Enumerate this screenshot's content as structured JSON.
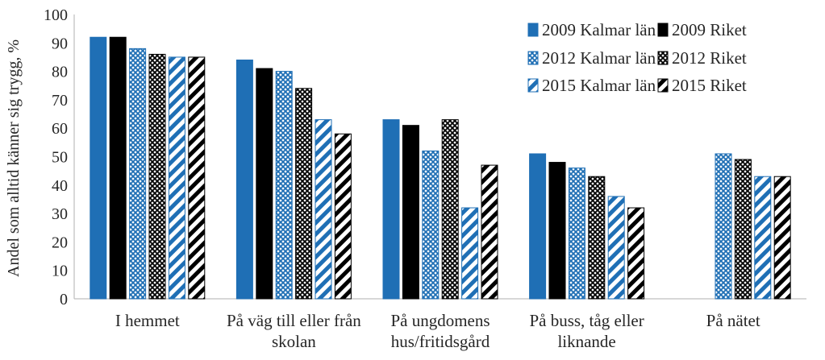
{
  "chart_data": {
    "type": "bar",
    "title": "",
    "ylabel": "Andel som alltid känner sig trygg, %",
    "xlabel": "",
    "ylim": [
      0,
      100
    ],
    "yticks": [
      0,
      10,
      20,
      30,
      40,
      50,
      60,
      70,
      80,
      90,
      100
    ],
    "grid": false,
    "legend_position": "top-right",
    "categories": [
      [
        "I hemmet"
      ],
      [
        "På väg till eller från",
        "skolan"
      ],
      [
        "På ungdomens",
        "hus/fritidsgård"
      ],
      [
        "På buss, tåg eller",
        "liknande"
      ],
      [
        "På nätet"
      ]
    ],
    "series": [
      {
        "name": "2009 Kalmar län",
        "values": [
          92,
          84,
          63,
          51,
          null
        ],
        "color": "#1f6fb5",
        "pattern": "solid"
      },
      {
        "name": "2009 Riket",
        "values": [
          92,
          81,
          61,
          48,
          null
        ],
        "color": "#000000",
        "pattern": "solid"
      },
      {
        "name": "2012 Kalmar län",
        "values": [
          88,
          80,
          52,
          46,
          51
        ],
        "color": "#1f6fb5",
        "pattern": "grid"
      },
      {
        "name": "2012 Riket",
        "values": [
          86,
          74,
          63,
          43,
          49
        ],
        "color": "#000000",
        "pattern": "grid"
      },
      {
        "name": "2015 Kalmar län",
        "values": [
          85,
          63,
          32,
          36,
          43
        ],
        "color": "#1f6fb5",
        "pattern": "diagonal"
      },
      {
        "name": "2015 Riket",
        "values": [
          85,
          58,
          47,
          32,
          43
        ],
        "color": "#000000",
        "pattern": "diagonal"
      }
    ]
  }
}
